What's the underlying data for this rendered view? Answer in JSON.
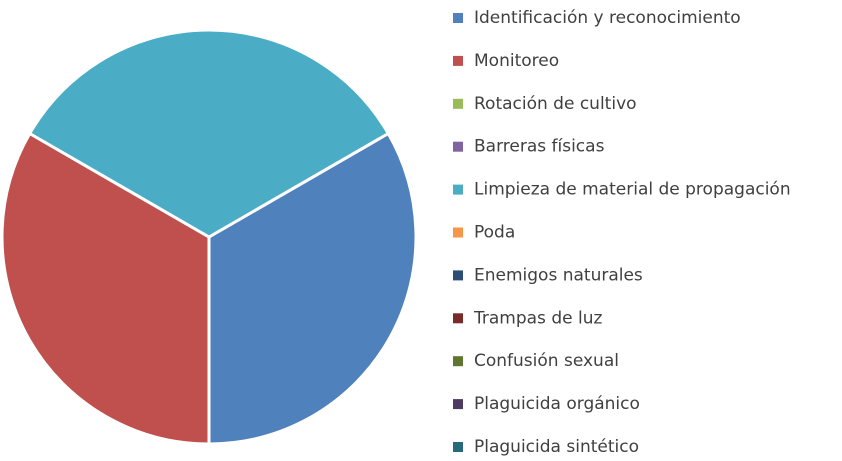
{
  "chart_data": {
    "type": "pie",
    "categories": [
      "Identificación y reconocimiento",
      "Monitoreo",
      "Rotación de cultivo",
      "Barreras físicas",
      "Limpieza de material de propagación",
      "Poda",
      "Enemigos naturales",
      "Trampas de luz",
      "Confusión sexual",
      "Plaguicida orgánico",
      "Plaguicida sintético"
    ],
    "values": [
      1,
      1,
      0,
      0,
      1,
      0,
      0,
      0,
      0,
      0,
      0
    ],
    "colors": [
      "#4f81bd",
      "#c0504d",
      "#9bbb59",
      "#8064a2",
      "#4bacc6",
      "#f79646",
      "#2c4d75",
      "#772c2a",
      "#5f7530",
      "#4d3b62",
      "#276a7c"
    ],
    "legend": "right"
  }
}
